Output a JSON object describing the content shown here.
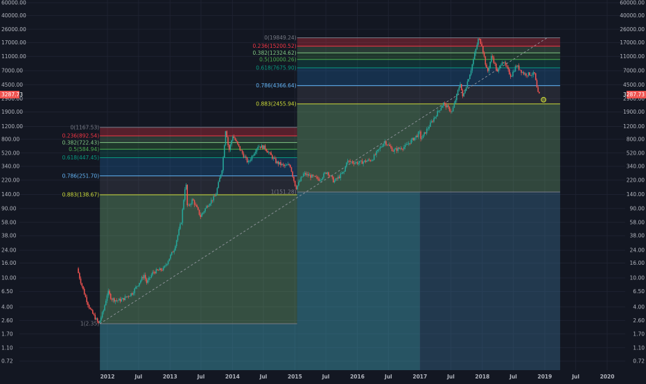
{
  "chart_data": {
    "type": "candlestick",
    "scale": "log",
    "grid": true,
    "y_ticks": [
      60000,
      40000,
      26000,
      17000,
      11000,
      7000,
      4500,
      2900,
      1900,
      1200,
      800,
      520,
      340,
      220,
      140,
      90,
      58,
      38,
      24,
      16,
      10,
      6.5,
      4,
      2.6,
      1.7,
      1.1,
      0.72
    ],
    "y_tick_labels": [
      "60000.00",
      "40000.00",
      "26000.00",
      "17000.00",
      "11000.00",
      "7000.00",
      "4500.00",
      "2900.00",
      "1900.00",
      "1200.00",
      "800.00",
      "520.00",
      "340.00",
      "220.00",
      "140.00",
      "90.00",
      "58.00",
      "38.00",
      "24.00",
      "16.00",
      "10.00",
      "6.50",
      "4.00",
      "2.60",
      "1.70",
      "1.10",
      "0.72"
    ],
    "x_ticks": [
      {
        "label": "2012",
        "date": "2012-01-01"
      },
      {
        "label": "Jul",
        "date": "2012-07-01"
      },
      {
        "label": "2013",
        "date": "2013-01-01"
      },
      {
        "label": "Jul",
        "date": "2013-07-01"
      },
      {
        "label": "2014",
        "date": "2014-01-01"
      },
      {
        "label": "Jul",
        "date": "2014-07-01"
      },
      {
        "label": "2015",
        "date": "2015-01-01"
      },
      {
        "label": "Jul",
        "date": "2015-07-01"
      },
      {
        "label": "2016",
        "date": "2016-01-01"
      },
      {
        "label": "Jul",
        "date": "2016-07-01"
      },
      {
        "label": "2017",
        "date": "2017-01-01"
      },
      {
        "label": "Jul",
        "date": "2017-07-01"
      },
      {
        "label": "2018",
        "date": "2018-01-01"
      },
      {
        "label": "Jul",
        "date": "2018-07-01"
      },
      {
        "label": "2019",
        "date": "2019-01-01"
      },
      {
        "label": "Jul",
        "date": "2019-07-01"
      },
      {
        "label": "2020",
        "date": "2020-01-01"
      }
    ],
    "last_price_label": "3287.73",
    "last_price": 3287.73,
    "price_path": [
      [
        "2011-07-15",
        13.5
      ],
      [
        "2011-08-01",
        9.5
      ],
      [
        "2011-09-01",
        5.5
      ],
      [
        "2011-10-01",
        3.6
      ],
      [
        "2011-11-18",
        2.35
      ],
      [
        "2011-12-15",
        3.5
      ],
      [
        "2012-01-10",
        6.5
      ],
      [
        "2012-02-01",
        5.2
      ],
      [
        "2012-03-01",
        4.9
      ],
      [
        "2012-04-01",
        5.0
      ],
      [
        "2012-06-01",
        6.2
      ],
      [
        "2012-08-10",
        11.0
      ],
      [
        "2012-08-25",
        8.5
      ],
      [
        "2012-10-01",
        12.0
      ],
      [
        "2012-12-01",
        13.3
      ],
      [
        "2013-02-01",
        25
      ],
      [
        "2013-03-15",
        60
      ],
      [
        "2013-04-10",
        220
      ],
      [
        "2013-04-20",
        90
      ],
      [
        "2013-05-20",
        120
      ],
      [
        "2013-07-05",
        70
      ],
      [
        "2013-08-15",
        100
      ],
      [
        "2013-10-01",
        135
      ],
      [
        "2013-11-10",
        330
      ],
      [
        "2013-11-30",
        1150
      ],
      [
        "2013-12-18",
        550
      ],
      [
        "2014-01-10",
        900
      ],
      [
        "2014-02-25",
        560
      ],
      [
        "2014-04-10",
        380
      ],
      [
        "2014-06-05",
        650
      ],
      [
        "2014-07-15",
        620
      ],
      [
        "2014-09-20",
        390
      ],
      [
        "2014-11-10",
        340
      ],
      [
        "2014-12-10",
        360
      ],
      [
        "2015-01-14",
        170
      ],
      [
        "2015-03-01",
        270
      ],
      [
        "2015-06-01",
        225
      ],
      [
        "2015-07-15",
        290
      ],
      [
        "2015-08-25",
        210
      ],
      [
        "2015-10-25",
        290
      ],
      [
        "2015-11-05",
        400
      ],
      [
        "2016-01-15",
        380
      ],
      [
        "2016-04-01",
        420
      ],
      [
        "2016-06-17",
        750
      ],
      [
        "2016-08-05",
        560
      ],
      [
        "2016-10-15",
        640
      ],
      [
        "2016-12-25",
        920
      ],
      [
        "2017-01-05",
        1000
      ],
      [
        "2017-01-15",
        800
      ],
      [
        "2017-03-01",
        1200
      ],
      [
        "2017-05-25",
        2500
      ],
      [
        "2017-07-15",
        1900
      ],
      [
        "2017-09-01",
        4800
      ],
      [
        "2017-09-15",
        3000
      ],
      [
        "2017-11-01",
        7000
      ],
      [
        "2017-12-17",
        19500
      ],
      [
        "2018-01-05",
        16000
      ],
      [
        "2018-02-06",
        6500
      ],
      [
        "2018-03-05",
        11500
      ],
      [
        "2018-04-06",
        6600
      ],
      [
        "2018-05-05",
        9800
      ],
      [
        "2018-06-25",
        5900
      ],
      [
        "2018-07-25",
        8300
      ],
      [
        "2018-09-10",
        6300
      ],
      [
        "2018-11-10",
        6300
      ],
      [
        "2018-11-20",
        4300
      ],
      [
        "2018-12-01",
        3300
      ]
    ],
    "fib_cycles": [
      {
        "start_date": "2011-11-18",
        "peak_date": "2013-11-30",
        "levels": [
          {
            "label": "0(1167.53)",
            "value": 1167.53
          },
          {
            "label": "0.236(892.54)",
            "value": 892.54
          },
          {
            "label": "0.382(722.43)",
            "value": 722.43
          },
          {
            "label": "0.5(584.94)",
            "value": 584.94
          },
          {
            "label": "0.618(447.45)",
            "value": 447.45
          },
          {
            "label": "0.786(251.70)",
            "value": 251.7
          },
          {
            "label": "0.883(138.67)",
            "value": 138.67
          },
          {
            "label": "1(2.35)",
            "value": 2.35
          }
        ]
      },
      {
        "start_date": "2015-01-14",
        "peak_date": "2017-12-17",
        "levels": [
          {
            "label": "0(19849.24)",
            "value": 19849.24
          },
          {
            "label": "0.236(15200.52)",
            "value": 15200.52
          },
          {
            "label": "0.382(12324.62)",
            "value": 12324.62
          },
          {
            "label": "0.5(10000.26)",
            "value": 10000.26
          },
          {
            "label": "0.618(7675.90)",
            "value": 7675.9
          },
          {
            "label": "0.786(4366.64)",
            "value": 4366.64
          },
          {
            "label": "0.883(2455.94)",
            "value": 2455.94
          },
          {
            "label": "1(151.28)",
            "value": 151.28
          }
        ]
      }
    ],
    "trendline": {
      "from": [
        "2011-11-18",
        2.35
      ],
      "to": [
        "2019-01-15",
        19849.24
      ]
    },
    "marker": {
      "date": "2018-12-25",
      "value": 2455.94
    },
    "colors": {
      "background": "#131722",
      "up": "#26a69a",
      "down": "#ef5350",
      "level_0": "#787b86",
      "level_0236": "#f23645",
      "level_0382": "#81c784",
      "level_05": "#4caf50",
      "level_0618": "#089981",
      "level_0786": "#64b5f6",
      "level_0883": "#cddc39",
      "level_1": "#787b86",
      "price_tag": "#ef5350"
    }
  }
}
